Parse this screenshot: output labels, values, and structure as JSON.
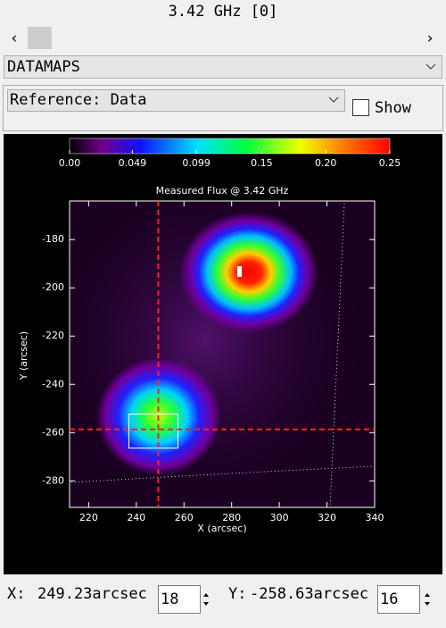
{
  "window_title": "3.42 GHz [0]",
  "map_selector": {
    "selected": "DATAMAPS"
  },
  "reference_selector": {
    "selected": "Reference: Data"
  },
  "show_checkbox": {
    "label": "Show",
    "checked": false
  },
  "chart_data": {
    "type": "heatmap",
    "title": "Measured Flux @ 3.42 GHz",
    "x_label": "X (arcsec)",
    "y_label": "Y (arcsec)",
    "xlim": [
      212,
      340
    ],
    "ylim": [
      -291,
      -164
    ],
    "xticks": [
      220,
      240,
      260,
      280,
      300,
      320,
      340
    ],
    "yticks": [
      -280,
      -260,
      -240,
      -220,
      -200,
      -180
    ],
    "colorbar": {
      "lim": [
        0,
        0.25
      ],
      "ticks": [
        {
          "value": 0,
          "label": "0.00"
        },
        0.049,
        0.099,
        0.15,
        {
          "value": 0.2,
          "label": "0.20"
        },
        0.25
      ]
    },
    "crosshair": {
      "x": 249.23,
      "y": -258.63
    }
  },
  "x_readout": {
    "label": "X:",
    "value": "249.23arcsec",
    "index": 18
  },
  "y_readout": {
    "label": "Y:",
    "value": "-258.63arcsec",
    "index": 16
  }
}
